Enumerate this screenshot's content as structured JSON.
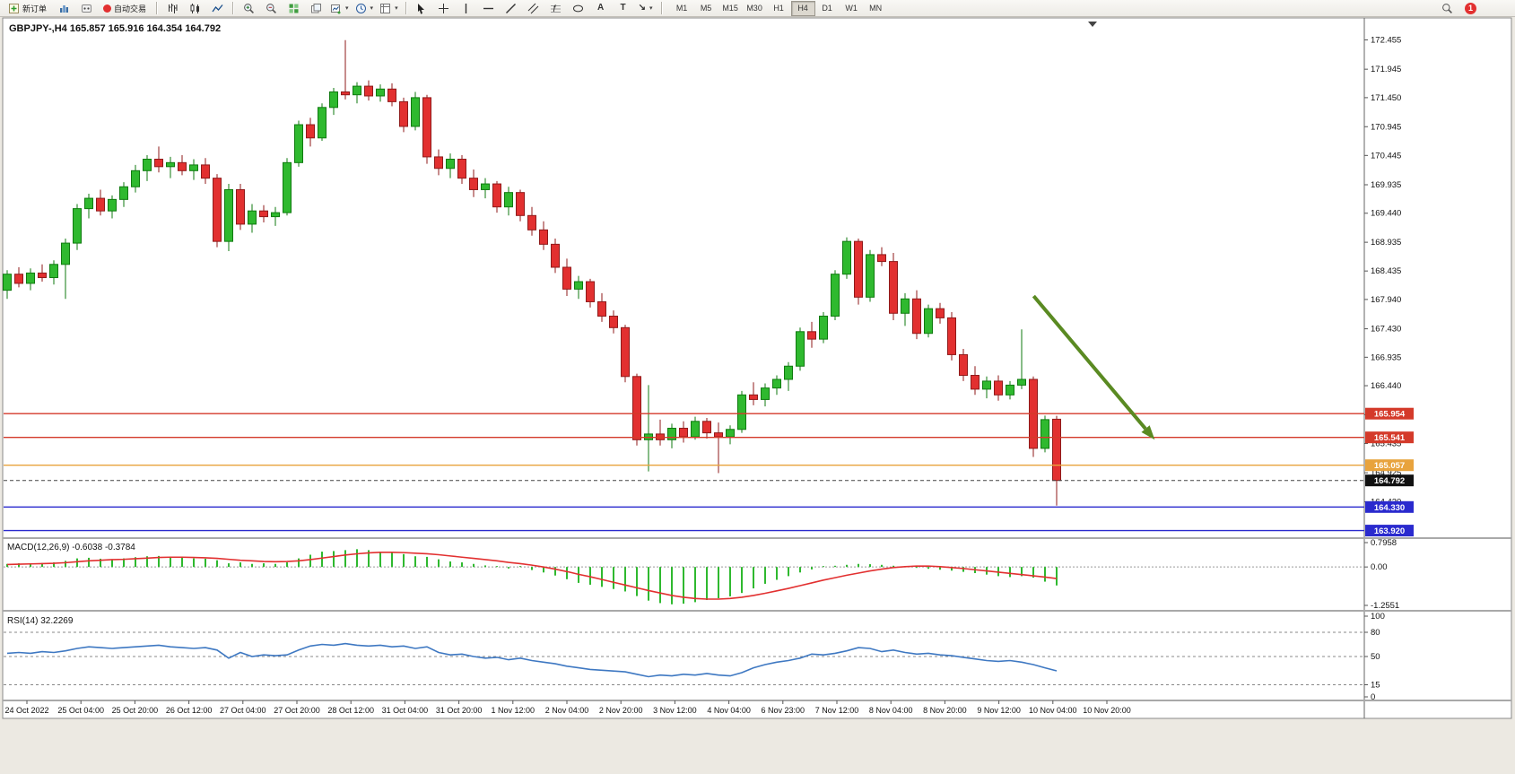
{
  "toolbar": {
    "new_order_label": "新订单",
    "auto_trading_label": "自动交易",
    "timeframes": [
      "M1",
      "M5",
      "M15",
      "M30",
      "H1",
      "H4",
      "D1",
      "W1",
      "MN"
    ],
    "active_timeframe": "H4",
    "notification_count": "1"
  },
  "chart": {
    "title": "GBPJPY-,H4 165.857 165.916 164.354 164.792",
    "symbol": "GBPJPY-",
    "period": "H4",
    "ohlc": {
      "open": "165.857",
      "high": "165.916",
      "low": "164.354",
      "close": "164.792"
    },
    "price_axis_labels": [
      "172.455",
      "171.945",
      "171.450",
      "170.945",
      "170.445",
      "169.935",
      "169.440",
      "168.935",
      "168.435",
      "167.940",
      "167.430",
      "166.935",
      "166.440",
      "165.935",
      "165.435",
      "164.925",
      "164.420"
    ],
    "price_badges": [
      {
        "label": "165.954",
        "price": 165.954,
        "color": "#d43a2a",
        "text_color": "#ffffff",
        "type": "resistance-line"
      },
      {
        "label": "165.541",
        "price": 165.541,
        "color": "#d43a2a",
        "text_color": "#ffffff",
        "type": "resistance-line"
      },
      {
        "label": "165.057",
        "price": 165.057,
        "color": "#e8a33d",
        "text_color": "#ffffff",
        "type": "support-line"
      },
      {
        "label": "164.792",
        "price": 164.792,
        "color": "#111111",
        "text_color": "#ffffff",
        "type": "current-price"
      },
      {
        "label": "164.330",
        "price": 164.33,
        "color": "#2a2ace",
        "text_color": "#ffffff",
        "type": "target-line"
      },
      {
        "label": "163.920",
        "price": 163.92,
        "color": "#2a2ace",
        "text_color": "#ffffff",
        "type": "target-line"
      }
    ],
    "colors": {
      "bull": "#2fb92f",
      "bullStroke": "#0f7a0f",
      "bear": "#e23030",
      "bearStroke": "#8f1a1a",
      "arrow": "#5a8a22",
      "macdHist": "#2fb92f",
      "macdSignal": "#e23030",
      "rsiLine": "#3e78c2"
    }
  },
  "macd_panel": {
    "label": "MACD(12,26,9) -0.6038 -0.3784",
    "axis_labels": [
      "0.7958",
      "0.00",
      "-1.2551"
    ]
  },
  "rsi_panel": {
    "label": "RSI(14) 32.2269",
    "axis_labels": [
      "100",
      "80",
      "50",
      "15",
      "0"
    ],
    "levels": [
      80,
      50,
      15
    ]
  },
  "time_axis": [
    "24 Oct 2022",
    "25 Oct 04:00",
    "25 Oct 20:00",
    "26 Oct 12:00",
    "27 Oct 04:00",
    "27 Oct 20:00",
    "28 Oct 12:00",
    "31 Oct 04:00",
    "31 Oct 20:00",
    "1 Nov 12:00",
    "2 Nov 04:00",
    "2 Nov 20:00",
    "3 Nov 12:00",
    "4 Nov 04:00",
    "6 Nov 23:00",
    "7 Nov 12:00",
    "8 Nov 04:00",
    "8 Nov 20:00",
    "9 Nov 12:00",
    "10 Nov 04:00",
    "10 Nov 20:00"
  ],
  "chart_data": {
    "type": "candlestick+indicators",
    "symbol": "GBPJPY",
    "timeframe": "H4",
    "price_range": [
      163.82,
      172.79
    ],
    "candles_ohlc": [
      [
        168.1,
        168.45,
        167.95,
        168.38
      ],
      [
        168.38,
        168.5,
        168.15,
        168.22
      ],
      [
        168.22,
        168.48,
        168.1,
        168.4
      ],
      [
        168.4,
        168.55,
        168.25,
        168.32
      ],
      [
        168.32,
        168.62,
        168.2,
        168.55
      ],
      [
        168.55,
        169.0,
        167.95,
        168.92
      ],
      [
        168.92,
        169.6,
        168.8,
        169.52
      ],
      [
        169.52,
        169.78,
        169.35,
        169.7
      ],
      [
        169.7,
        169.85,
        169.4,
        169.48
      ],
      [
        169.48,
        169.75,
        169.35,
        169.68
      ],
      [
        169.68,
        169.98,
        169.55,
        169.9
      ],
      [
        169.9,
        170.28,
        169.8,
        170.18
      ],
      [
        170.18,
        170.45,
        170.0,
        170.38
      ],
      [
        170.38,
        170.6,
        170.15,
        170.25
      ],
      [
        170.25,
        170.42,
        170.05,
        170.32
      ],
      [
        170.32,
        170.45,
        170.1,
        170.18
      ],
      [
        170.18,
        170.38,
        170.02,
        170.28
      ],
      [
        170.28,
        170.4,
        169.95,
        170.05
      ],
      [
        170.05,
        170.12,
        168.85,
        168.95
      ],
      [
        168.95,
        169.95,
        168.78,
        169.85
      ],
      [
        169.85,
        169.95,
        169.15,
        169.25
      ],
      [
        169.25,
        169.6,
        169.1,
        169.48
      ],
      [
        169.48,
        169.58,
        169.28,
        169.38
      ],
      [
        169.38,
        169.55,
        169.22,
        169.45
      ],
      [
        169.45,
        170.4,
        169.4,
        170.32
      ],
      [
        170.32,
        171.05,
        170.25,
        170.98
      ],
      [
        170.98,
        171.1,
        170.6,
        170.75
      ],
      [
        170.75,
        171.35,
        170.7,
        171.28
      ],
      [
        171.28,
        171.62,
        171.15,
        171.55
      ],
      [
        171.55,
        172.45,
        171.42,
        171.5
      ],
      [
        171.5,
        171.72,
        171.35,
        171.65
      ],
      [
        171.65,
        171.75,
        171.4,
        171.48
      ],
      [
        171.48,
        171.68,
        171.38,
        171.6
      ],
      [
        171.6,
        171.7,
        171.3,
        171.38
      ],
      [
        171.38,
        171.45,
        170.85,
        170.95
      ],
      [
        170.95,
        171.55,
        170.88,
        171.45
      ],
      [
        171.45,
        171.5,
        170.3,
        170.42
      ],
      [
        170.42,
        170.55,
        170.1,
        170.22
      ],
      [
        170.22,
        170.48,
        170.05,
        170.38
      ],
      [
        170.38,
        170.45,
        169.95,
        170.05
      ],
      [
        170.05,
        170.2,
        169.72,
        169.85
      ],
      [
        169.85,
        170.05,
        169.7,
        169.95
      ],
      [
        169.95,
        170.0,
        169.45,
        169.55
      ],
      [
        169.55,
        169.9,
        169.4,
        169.8
      ],
      [
        169.8,
        169.85,
        169.3,
        169.4
      ],
      [
        169.4,
        169.55,
        169.05,
        169.15
      ],
      [
        169.15,
        169.3,
        168.8,
        168.9
      ],
      [
        168.9,
        169.0,
        168.4,
        168.5
      ],
      [
        168.5,
        168.65,
        168.0,
        168.12
      ],
      [
        168.12,
        168.35,
        167.95,
        168.25
      ],
      [
        168.25,
        168.3,
        167.8,
        167.9
      ],
      [
        167.9,
        168.05,
        167.55,
        167.65
      ],
      [
        167.65,
        167.75,
        167.35,
        167.45
      ],
      [
        167.45,
        167.5,
        166.5,
        166.6
      ],
      [
        166.6,
        166.65,
        165.4,
        165.5
      ],
      [
        165.5,
        166.45,
        164.95,
        165.6
      ],
      [
        165.6,
        165.85,
        165.4,
        165.5
      ],
      [
        165.5,
        165.78,
        165.35,
        165.7
      ],
      [
        165.7,
        165.82,
        165.45,
        165.55
      ],
      [
        165.55,
        165.9,
        165.5,
        165.82
      ],
      [
        165.82,
        165.88,
        165.52,
        165.62
      ],
      [
        165.62,
        165.8,
        164.92,
        165.55
      ],
      [
        165.55,
        165.75,
        165.42,
        165.68
      ],
      [
        165.68,
        166.35,
        165.62,
        166.28
      ],
      [
        166.28,
        166.5,
        166.1,
        166.2
      ],
      [
        166.2,
        166.48,
        166.08,
        166.4
      ],
      [
        166.4,
        166.62,
        166.28,
        166.55
      ],
      [
        166.55,
        166.85,
        166.35,
        166.78
      ],
      [
        166.78,
        167.45,
        166.7,
        167.38
      ],
      [
        167.38,
        167.55,
        167.1,
        167.25
      ],
      [
        167.25,
        167.72,
        167.18,
        167.65
      ],
      [
        167.65,
        168.45,
        167.58,
        168.38
      ],
      [
        168.38,
        169.02,
        168.3,
        168.95
      ],
      [
        168.95,
        169.0,
        167.85,
        167.98
      ],
      [
        167.98,
        168.8,
        167.9,
        168.72
      ],
      [
        168.72,
        168.85,
        168.52,
        168.6
      ],
      [
        168.6,
        168.75,
        167.58,
        167.7
      ],
      [
        167.7,
        168.05,
        167.48,
        167.95
      ],
      [
        167.95,
        168.1,
        167.25,
        167.35
      ],
      [
        167.35,
        167.85,
        167.28,
        167.78
      ],
      [
        167.78,
        167.88,
        167.52,
        167.62
      ],
      [
        167.62,
        167.72,
        166.88,
        166.98
      ],
      [
        166.98,
        167.08,
        166.52,
        166.62
      ],
      [
        166.62,
        166.78,
        166.28,
        166.38
      ],
      [
        166.38,
        166.6,
        166.22,
        166.52
      ],
      [
        166.52,
        166.62,
        166.18,
        166.28
      ],
      [
        166.28,
        166.52,
        166.2,
        166.45
      ],
      [
        166.45,
        167.42,
        166.38,
        166.55
      ],
      [
        166.55,
        166.6,
        165.2,
        165.35
      ],
      [
        165.35,
        165.92,
        165.28,
        165.85
      ],
      [
        165.857,
        165.916,
        164.354,
        164.792
      ]
    ],
    "macd": {
      "histogram": [
        0.1,
        0.12,
        0.1,
        0.13,
        0.15,
        0.2,
        0.28,
        0.3,
        0.27,
        0.25,
        0.28,
        0.32,
        0.35,
        0.36,
        0.33,
        0.3,
        0.28,
        0.27,
        0.22,
        0.12,
        0.15,
        0.1,
        0.12,
        0.1,
        0.15,
        0.28,
        0.4,
        0.5,
        0.52,
        0.55,
        0.58,
        0.55,
        0.5,
        0.48,
        0.42,
        0.35,
        0.33,
        0.25,
        0.18,
        0.15,
        0.1,
        0.05,
        0.02,
        -0.05,
        -0.02,
        -0.1,
        -0.18,
        -0.28,
        -0.4,
        -0.52,
        -0.58,
        -0.65,
        -0.72,
        -0.8,
        -0.95,
        -1.1,
        -1.18,
        -1.22,
        -1.2,
        -1.15,
        -1.08,
        -1.02,
        -0.96,
        -0.85,
        -0.7,
        -0.55,
        -0.42,
        -0.3,
        -0.18,
        -0.08,
        0.0,
        0.04,
        0.07,
        0.1,
        0.09,
        0.07,
        0.04,
        0.01,
        -0.03,
        -0.06,
        -0.09,
        -0.12,
        -0.16,
        -0.2,
        -0.25,
        -0.3,
        -0.33,
        -0.3,
        -0.35,
        -0.48,
        -0.6038
      ],
      "signal": [
        0.08,
        0.09,
        0.1,
        0.11,
        0.12,
        0.14,
        0.17,
        0.2,
        0.22,
        0.24,
        0.25,
        0.27,
        0.29,
        0.31,
        0.32,
        0.32,
        0.31,
        0.3,
        0.28,
        0.25,
        0.22,
        0.2,
        0.18,
        0.17,
        0.18,
        0.2,
        0.24,
        0.29,
        0.34,
        0.39,
        0.43,
        0.46,
        0.48,
        0.48,
        0.47,
        0.45,
        0.43,
        0.4,
        0.36,
        0.32,
        0.28,
        0.24,
        0.2,
        0.15,
        0.11,
        0.06,
        0.0,
        -0.07,
        -0.15,
        -0.24,
        -0.32,
        -0.41,
        -0.5,
        -0.59,
        -0.68,
        -0.77,
        -0.85,
        -0.93,
        -0.99,
        -1.03,
        -1.05,
        -1.05,
        -1.03,
        -0.99,
        -0.93,
        -0.86,
        -0.78,
        -0.7,
        -0.61,
        -0.52,
        -0.43,
        -0.35,
        -0.27,
        -0.2,
        -0.13,
        -0.07,
        -0.02,
        0.01,
        0.03,
        0.03,
        0.01,
        -0.02,
        -0.05,
        -0.09,
        -0.13,
        -0.17,
        -0.21,
        -0.25,
        -0.29,
        -0.33,
        -0.3784
      ],
      "range": [
        -1.2551,
        0.7958
      ],
      "last_values": [
        -0.6038,
        -0.3784
      ]
    },
    "rsi": {
      "values": [
        54,
        55,
        54,
        56,
        55,
        57,
        60,
        62,
        61,
        60,
        61,
        62,
        63,
        64,
        62,
        61,
        60,
        61,
        58,
        48,
        55,
        50,
        52,
        51,
        52,
        58,
        63,
        65,
        64,
        66,
        64,
        63,
        64,
        62,
        63,
        60,
        62,
        55,
        52,
        53,
        50,
        48,
        49,
        46,
        48,
        45,
        43,
        41,
        38,
        36,
        34,
        33,
        32,
        31,
        28,
        25,
        27,
        26,
        28,
        27,
        29,
        27,
        26,
        30,
        36,
        40,
        43,
        45,
        48,
        53,
        52,
        54,
        57,
        61,
        60,
        56,
        58,
        55,
        53,
        54,
        52,
        51,
        49,
        47,
        45,
        44,
        45,
        43,
        40,
        36,
        32.23
      ],
      "range": [
        0,
        100
      ],
      "last_value": 32.2269
    },
    "hlines": [
      165.954,
      165.541,
      165.057,
      164.33,
      163.92
    ],
    "current_price": 164.792,
    "arrow": {
      "from_x_frac": 0.757,
      "from_price": 168.0,
      "to_x_frac": 0.846,
      "to_price": 165.5
    }
  }
}
